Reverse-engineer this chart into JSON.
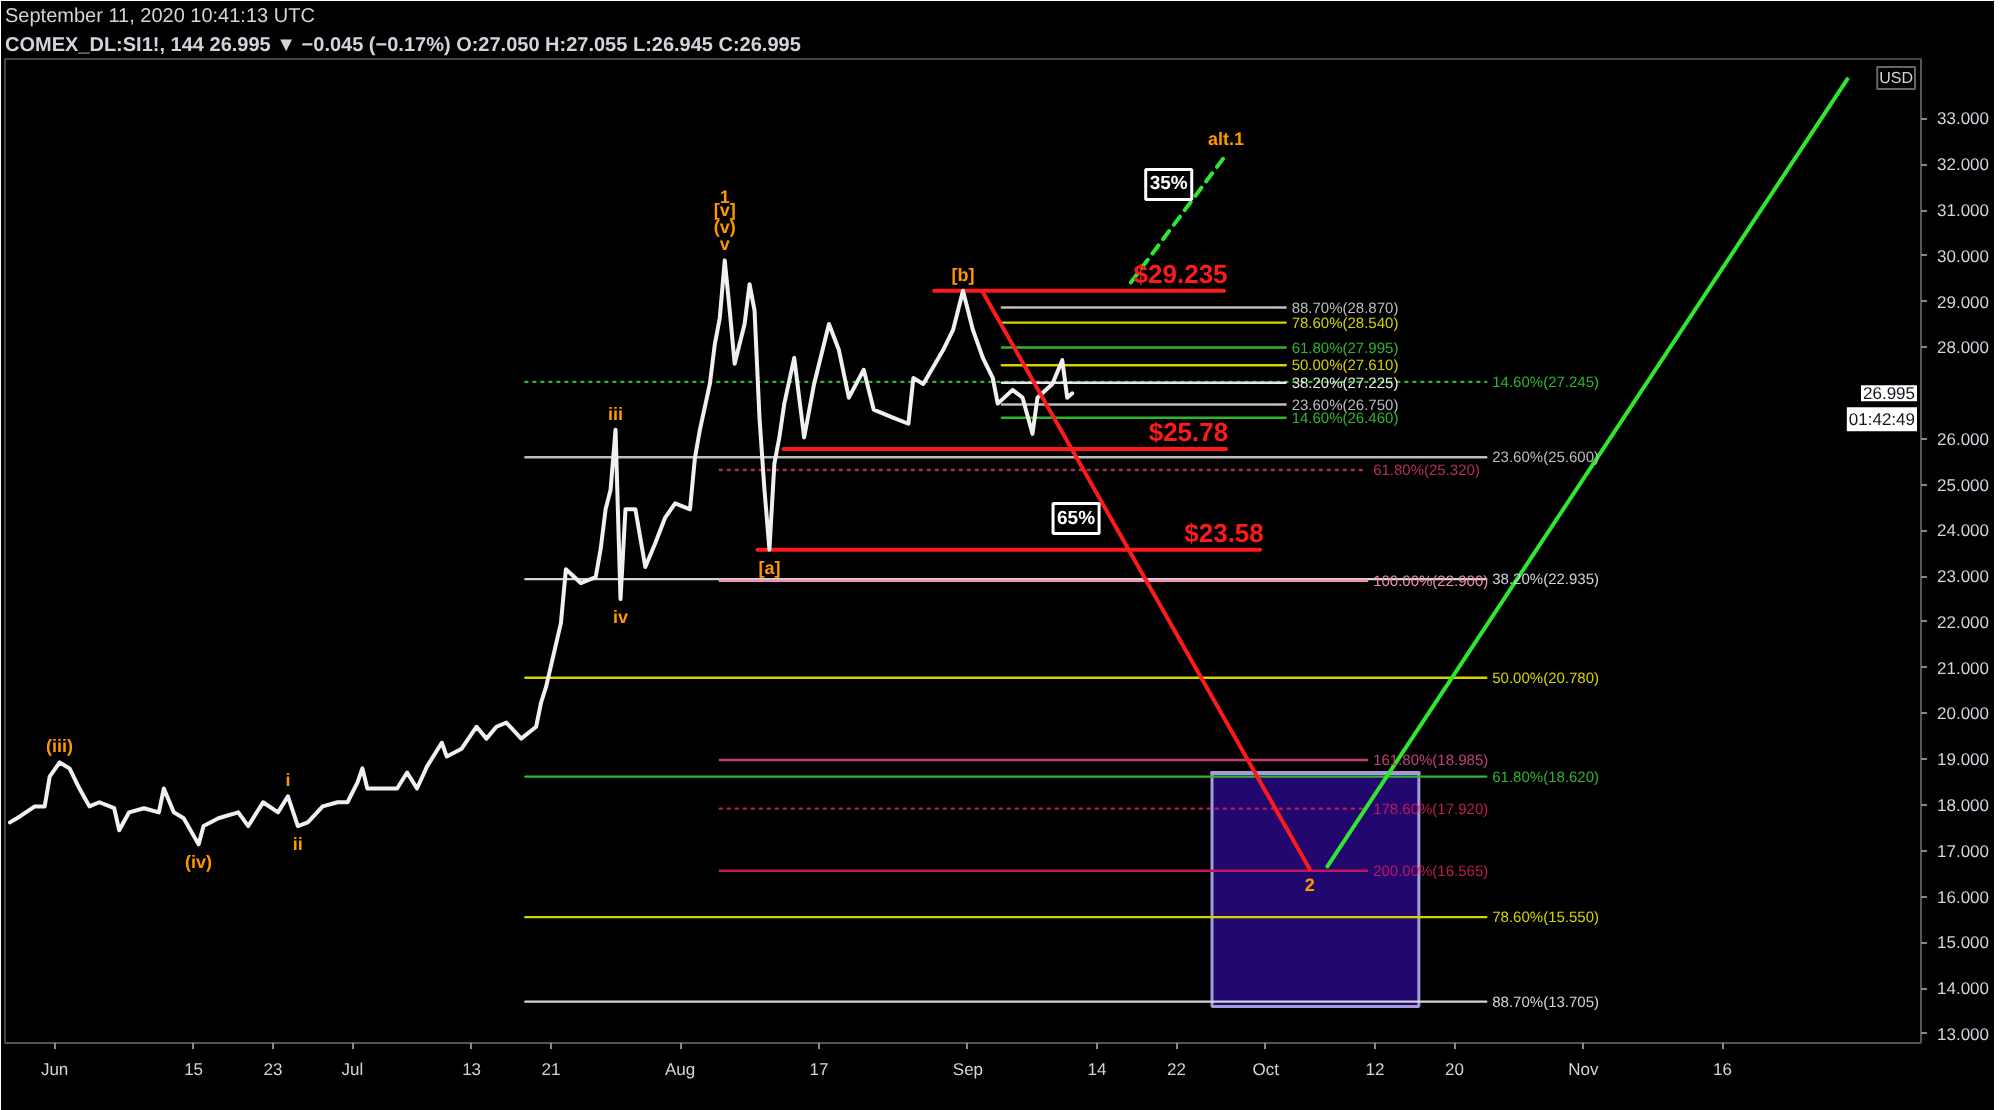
{
  "chart_data": {
    "type": "line",
    "title": "COMEX_DL:SI1!, 144  26.995 ▼ −0.045 (−0.17%) O:27.050 H:27.055 L:26.945 C:26.995",
    "subtitle": "September 11, 2020 10:41:13 UTC",
    "ylabel": "USD",
    "xlim": [
      "2020-05-27",
      "2020-12-06"
    ],
    "ylim": [
      12.8,
      34.3
    ],
    "xticks": [
      {
        "value": "2020-06-01",
        "label": "Jun"
      },
      {
        "value": "2020-06-15",
        "label": "15"
      },
      {
        "value": "2020-06-23",
        "label": "23"
      },
      {
        "value": "2020-07-01",
        "label": "Jul"
      },
      {
        "value": "2020-07-13",
        "label": "13"
      },
      {
        "value": "2020-07-21",
        "label": "21"
      },
      {
        "value": "2020-08-03",
        "label": "Aug"
      },
      {
        "value": "2020-08-17",
        "label": "17"
      },
      {
        "value": "2020-09-01",
        "label": "Sep"
      },
      {
        "value": "2020-09-14",
        "label": "14"
      },
      {
        "value": "2020-09-22",
        "label": "22"
      },
      {
        "value": "2020-10-01",
        "label": "Oct"
      },
      {
        "value": "2020-10-12",
        "label": "12"
      },
      {
        "value": "2020-10-20",
        "label": "20"
      },
      {
        "value": "2020-11-02",
        "label": "Nov"
      },
      {
        "value": "2020-11-16",
        "label": "16"
      }
    ],
    "yticks": [
      {
        "value": 13,
        "label": "13.000"
      },
      {
        "value": 14,
        "label": "14.000"
      },
      {
        "value": 15,
        "label": "15.000"
      },
      {
        "value": 16,
        "label": "16.000"
      },
      {
        "value": 17,
        "label": "17.000"
      },
      {
        "value": 18,
        "label": "18.000"
      },
      {
        "value": 19,
        "label": "19.000"
      },
      {
        "value": 20,
        "label": "20.000"
      },
      {
        "value": 21,
        "label": "21.000"
      },
      {
        "value": 22,
        "label": "22.000"
      },
      {
        "value": 23,
        "label": "23.000"
      },
      {
        "value": 24,
        "label": "24.000"
      },
      {
        "value": 25,
        "label": "25.000"
      },
      {
        "value": 26,
        "label": "26.000"
      },
      {
        "value": 28,
        "label": "28.000"
      },
      {
        "value": 29,
        "label": "29.000"
      },
      {
        "value": 30,
        "label": "30.000"
      },
      {
        "value": 31,
        "label": "31.000"
      },
      {
        "value": 32,
        "label": "32.000"
      },
      {
        "value": 33,
        "label": "33.000"
      }
    ],
    "series": [
      {
        "color": "#a59bd9",
        "x": [
          "2020-09-25T14:00",
          "2020-10-16T10:00"
        ],
        "values": [
          18.7,
          18.7
        ],
        "lower": [
          13.6,
          13.6
        ],
        "upper": [
          18.7,
          18.7
        ]
      },
      {
        "name": "14.60%(27.245)",
        "color": "#2fb52f",
        "line_style": "dotted",
        "x": [
          "2020-07-18T10:00",
          "2020-10-23T05:00"
        ],
        "values": [
          27.245,
          27.245
        ]
      },
      {
        "name": "23.60%(25.600)",
        "color": "#bdbdbd",
        "x": [
          "2020-07-18T10:00",
          "2020-10-23T05:00"
        ],
        "values": [
          25.6,
          25.6
        ]
      },
      {
        "name": "38.20%(22.935)",
        "color": "#d1d4dc",
        "x": [
          "2020-07-18T10:00",
          "2020-10-23T05:00"
        ],
        "values": [
          22.935,
          22.935
        ]
      },
      {
        "name": "50.00%(20.780)",
        "color": "#d4d400",
        "x": [
          "2020-07-18T10:00",
          "2020-10-23T05:00"
        ],
        "values": [
          20.78,
          20.78
        ]
      },
      {
        "name": "61.80%(18.620)",
        "color": "#2fb52f",
        "x": [
          "2020-07-18T10:00",
          "2020-10-23T05:00"
        ],
        "values": [
          18.62,
          18.62
        ]
      },
      {
        "name": "78.60%(15.550)",
        "color": "#d4d400",
        "x": [
          "2020-07-18T10:00",
          "2020-10-23T05:00"
        ],
        "values": [
          15.55,
          15.55
        ]
      },
      {
        "name": "88.70%(13.705)",
        "color": "#d1d4dc",
        "x": [
          "2020-07-18T10:00",
          "2020-10-23T05:00"
        ],
        "values": [
          13.705,
          13.705
        ]
      },
      {
        "name": "88.70%(28.870)",
        "color": "#bdbdbd",
        "x": [
          "2020-09-04T10:00",
          "2020-10-03"
        ],
        "values": [
          28.87,
          28.87
        ]
      },
      {
        "name": "78.60%(28.540)",
        "color": "#d4d400",
        "x": [
          "2020-09-04T10:00",
          "2020-10-03"
        ],
        "values": [
          28.54,
          28.54
        ]
      },
      {
        "name": "61.80%(27.995)",
        "color": "#2fb52f",
        "x": [
          "2020-09-04T10:00",
          "2020-10-03"
        ],
        "values": [
          27.995,
          27.995
        ]
      },
      {
        "name": "50.00%(27.610)",
        "color": "#d4d400",
        "x": [
          "2020-09-04T10:00",
          "2020-10-03"
        ],
        "values": [
          27.61,
          27.61
        ]
      },
      {
        "name": "38.20%(27.225)",
        "color": "#e8e8e8",
        "x": [
          "2020-09-04T10:00",
          "2020-10-03"
        ],
        "values": [
          27.225,
          27.225
        ]
      },
      {
        "name": "23.60%(26.750)",
        "color": "#bdbdbd",
        "x": [
          "2020-09-04T10:00",
          "2020-10-03"
        ],
        "values": [
          26.75,
          26.75
        ]
      },
      {
        "name": "14.60%(26.460)",
        "color": "#2fb52f",
        "x": [
          "2020-09-04T10:00",
          "2020-10-03"
        ],
        "values": [
          26.46,
          26.46
        ]
      },
      {
        "name": "61.80%(25.320)",
        "color": "#b0305f",
        "line_style": "dotted",
        "x": [
          "2020-08-07",
          "2020-10-11T05:00"
        ],
        "values": [
          25.32,
          25.32
        ]
      },
      {
        "name": "100.00%(22.900)",
        "color": "#f48fb1",
        "x": [
          "2020-08-07",
          "2020-10-11T05:00"
        ],
        "values": [
          22.9,
          22.9
        ]
      },
      {
        "name": "161.80%(18.985)",
        "color": "#c0407a",
        "x": [
          "2020-08-07",
          "2020-10-11T05:00"
        ],
        "values": [
          18.985,
          18.985
        ]
      },
      {
        "name": "178.60%(17.920)",
        "color": "#c2185b",
        "line_style": "dotted",
        "x": [
          "2020-08-07",
          "2020-10-11T05:00"
        ],
        "values": [
          17.92,
          17.92
        ]
      },
      {
        "name": "200.00%(16.565)",
        "color": "#c2185b",
        "x": [
          "2020-08-07",
          "2020-10-11T05:00"
        ],
        "values": [
          16.565,
          16.565
        ]
      },
      {
        "color": "#ff1a1a",
        "x": [
          "2020-08-28T14:00",
          "2020-09-26T19:00"
        ],
        "values": [
          29.235,
          29.235
        ]
      },
      {
        "color": "#ff1a1a",
        "x": [
          "2020-08-13T10:00",
          "2020-09-27"
        ],
        "values": [
          25.78,
          25.78
        ]
      },
      {
        "color": "#ff1a1a",
        "x": [
          "2020-08-10T19:00",
          "2020-09-30T10:00"
        ],
        "values": [
          23.58,
          23.58
        ]
      },
      {
        "color": "#f0f0f0",
        "x": [
          "2020-05-27T12:00",
          "2020-05-28T12:00",
          "2020-05-30",
          "2020-05-31",
          "2020-05-31T12:00",
          "2020-06-01T12:00",
          "2020-06-02T12:00",
          "2020-06-03T12:00",
          "2020-06-04T12:00",
          "2020-06-05T12:00",
          "2020-06-07",
          "2020-06-07T12:00",
          "2020-06-08T12:00",
          "2020-06-10",
          "2020-06-11T12:00",
          "2020-06-12",
          "2020-06-13",
          "2020-06-14",
          "2020-06-15T12:00",
          "2020-06-16",
          "2020-06-17T12:00",
          "2020-06-19T12:00",
          "2020-06-20T12:00",
          "2020-06-22",
          "2020-06-23T12:00",
          "2020-06-24T12:00",
          "2020-06-25T12:00",
          "2020-06-26T12:00",
          "2020-06-28",
          "2020-06-29T12:00",
          "2020-06-30T12:00",
          "2020-07-01T12:00",
          "2020-07-02",
          "2020-07-02T12:00",
          "2020-07-04",
          "2020-07-05T12:00",
          "2020-07-06T12:00",
          "2020-07-07T12:00",
          "2020-07-08T12:00",
          "2020-07-10",
          "2020-07-10T12:00",
          "2020-07-12",
          "2020-07-13T12:00",
          "2020-07-14T12:00",
          "2020-07-15T12:00",
          "2020-07-16T12:00",
          "2020-07-18",
          "2020-07-19T12:00",
          "2020-07-20",
          "2020-07-20T12:00",
          "2020-07-22",
          "2020-07-22T12:00",
          "2020-07-24",
          "2020-07-25T12:00",
          "2020-07-26",
          "2020-07-26T12:00",
          "2020-07-27",
          "2020-07-27T12:00",
          "2020-07-28",
          "2020-07-28T12:00",
          "2020-07-29T12:00",
          "2020-07-30T12:00",
          "2020-07-31T12:00",
          "2020-08-01T12:00",
          "2020-08-02T12:00",
          "2020-08-04",
          "2020-08-04T12:00",
          "2020-08-05",
          "2020-08-06",
          "2020-08-06T12:00",
          "2020-08-07",
          "2020-08-07T12:00",
          "2020-08-08",
          "2020-08-08T12:00",
          "2020-08-09T12:00",
          "2020-08-10",
          "2020-08-10T12:00",
          "2020-08-11",
          "2020-08-11T12:00",
          "2020-08-12",
          "2020-08-12T12:00",
          "2020-08-13",
          "2020-08-13T12:00",
          "2020-08-14T12:00",
          "2020-08-15",
          "2020-08-15T12:00",
          "2020-08-16T12:00",
          "2020-08-18",
          "2020-08-19",
          "2020-08-20",
          "2020-08-21T12:00",
          "2020-08-22T12:00",
          "2020-08-24T12:00",
          "2020-08-26",
          "2020-08-26T12:00",
          "2020-08-27T12:00",
          "2020-08-29T12:00",
          "2020-08-30T12:00",
          "2020-08-31T12:00",
          "2020-09-01T12:00",
          "2020-09-02T12:00",
          "2020-09-03T12:00",
          "2020-09-04",
          "2020-09-05T12:00",
          "2020-09-06T12:00",
          "2020-09-07T12:00",
          "2020-09-08",
          "2020-09-09T12:00",
          "2020-09-10T12:00",
          "2020-09-11",
          "2020-09-11T12:00"
        ],
        "values": [
          17.62,
          17.75,
          17.97,
          17.97,
          18.62,
          18.93,
          18.8,
          18.36,
          17.97,
          18.06,
          17.93,
          17.45,
          17.84,
          17.93,
          17.84,
          18.36,
          17.84,
          17.71,
          17.14,
          17.54,
          17.71,
          17.84,
          17.54,
          18.06,
          17.84,
          18.19,
          17.54,
          17.62,
          17.97,
          18.06,
          18.06,
          18.49,
          18.8,
          18.36,
          18.36,
          18.36,
          18.71,
          18.36,
          18.84,
          19.36,
          19.06,
          19.23,
          19.71,
          19.45,
          19.71,
          19.8,
          19.45,
          19.71,
          20.24,
          20.58,
          21.98,
          23.15,
          22.85,
          22.98,
          23.59,
          24.46,
          24.89,
          26.2,
          22.5,
          24.46,
          24.46,
          23.2,
          23.72,
          24.28,
          24.59,
          24.46,
          25.59,
          26.2,
          27.2,
          28.07,
          28.64,
          29.9,
          28.81,
          27.64,
          28.51,
          29.38,
          28.81,
          26.46,
          24.89,
          23.58,
          25.46,
          26.03,
          26.77,
          27.77,
          26.9,
          26.03,
          27.2,
          28.51,
          27.94,
          26.9,
          27.51,
          26.64,
          26.46,
          26.33,
          27.33,
          27.2,
          27.94,
          28.38,
          29.235,
          28.38,
          27.77,
          27.33,
          26.77,
          27.07,
          26.9,
          26.11,
          26.9,
          27.2,
          27.72,
          26.9,
          26.995
        ]
      },
      {
        "color": "#ff1a1a",
        "x": [
          "2020-09-02T10:00",
          "2020-10-05T10:00"
        ],
        "values": [
          29.235,
          16.6
        ]
      },
      {
        "color": "#2ee82e",
        "x": [
          "2020-10-07T05:00",
          "2020-11-28T14:00"
        ],
        "values": [
          16.66,
          33.86
        ]
      },
      {
        "color": "#2ee82e",
        "line_style": "dashed",
        "x": [
          "2020-09-17T10:00",
          "2020-09-27"
        ],
        "values": [
          29.42,
          32.21
        ]
      }
    ],
    "annotations": [
      {
        "text": "1",
        "x": "2020-08-07T12:00",
        "y": 29.9
      },
      {
        "text": "[v]",
        "x": "2020-08-07T12:00",
        "y": 29.9
      },
      {
        "text": "(v)",
        "x": "2020-08-07T12:00",
        "y": 29.9
      },
      {
        "text": "v",
        "x": "2020-08-07T12:00",
        "y": 29.9
      },
      {
        "text": "iii",
        "x": "2020-07-27T12:00",
        "y": 26.2
      },
      {
        "text": "iv",
        "x": "2020-07-28",
        "y": 22.5
      },
      {
        "text": "[a]",
        "x": "2020-08-12",
        "y": 23.58
      },
      {
        "text": "[b]",
        "x": "2020-08-31T12:00",
        "y": 29.235
      },
      {
        "text": "(iii)",
        "x": "2020-06-01T12:00",
        "y": 18.93
      },
      {
        "text": "(iv)",
        "x": "2020-06-15T12:00",
        "y": 17.14
      },
      {
        "text": "i",
        "x": "2020-06-24T12:00",
        "y": 18.19
      },
      {
        "text": "ii",
        "x": "2020-06-25T12:00",
        "y": 17.54
      },
      {
        "text": "2",
        "x": "2020-10-05T10:00",
        "y": 16.6
      },
      {
        "text": "alt.1",
        "x": "2020-09-27",
        "y": 32.21
      },
      {
        "text": "$29.235",
        "x": "2020-09-22T10:00",
        "y": 29.235
      },
      {
        "text": "$25.78",
        "x": "2020-09-23T05:00",
        "y": 25.78
      },
      {
        "text": "$23.58",
        "x": "2020-09-26T19:00",
        "y": 23.58
      },
      {
        "text": "35%",
        "x": "2020-09-24T18:00",
        "y": 31.56
      },
      {
        "text": "65%",
        "x": "2020-09-15T10:00",
        "y": 24.26
      },
      "26.995",
      "01:42:49"
    ]
  }
}
